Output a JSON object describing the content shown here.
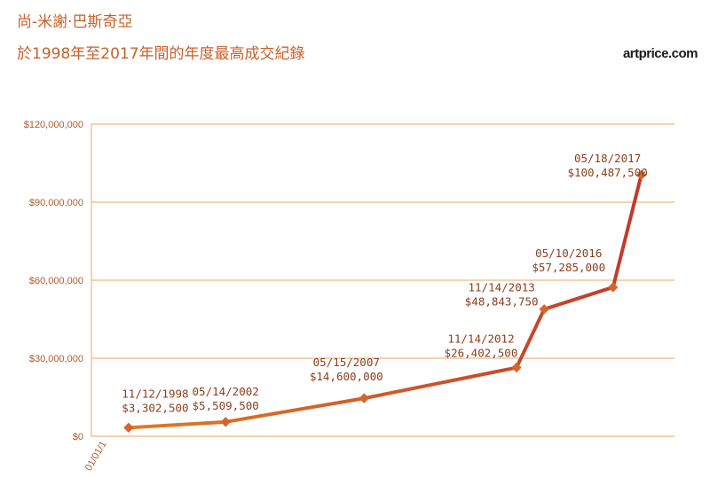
{
  "header": {
    "title": "尚-米謝·巴斯奇亞",
    "subtitle": "於1998年至2017年間的年度最高成交紀錄",
    "brand": "artprice.com"
  },
  "colors": {
    "title": "#c8612a",
    "grid": "#e8a76b",
    "line_start": "#e07b24",
    "line_end": "#c0392b",
    "marker": "#d6652a",
    "label": "#8a3e1e"
  },
  "chart_data": {
    "type": "line",
    "title": "於1998年至2017年間的年度最高成交紀錄",
    "xlabel": "",
    "ylabel": "",
    "ylim": [
      0,
      120000000
    ],
    "yticks": [
      0,
      30000000,
      60000000,
      90000000,
      120000000
    ],
    "ytick_labels": [
      "$0",
      "$30,000,000",
      "$60,000,000",
      "$90,000,000",
      "$120,000,000"
    ],
    "xtick_labels": [
      "01/01/1"
    ],
    "grid": true,
    "points": [
      {
        "date": "11/12/1998",
        "value": 3302500,
        "label": "$3,302,500"
      },
      {
        "date": "05/14/2002",
        "value": 5509500,
        "label": "$5,509,500"
      },
      {
        "date": "05/15/2007",
        "value": 14600000,
        "label": "$14,600,000"
      },
      {
        "date": "11/14/2012",
        "value": 26402500,
        "label": "$26,402,500"
      },
      {
        "date": "11/14/2013",
        "value": 48843750,
        "label": "$48,843,750"
      },
      {
        "date": "05/10/2016",
        "value": 57285000,
        "label": "$57,285,000"
      },
      {
        "date": "05/18/2017",
        "value": 100487500,
        "label": "$100,487,500"
      }
    ]
  }
}
